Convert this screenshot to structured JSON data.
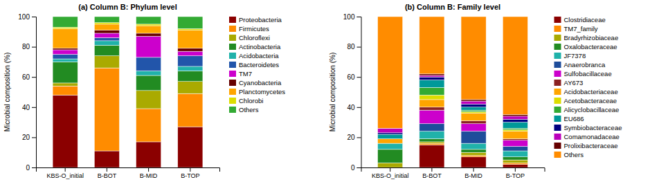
{
  "chart_data": [
    {
      "type": "bar",
      "stacked": true,
      "grid": false,
      "legend": "right",
      "title": "(a) Column B: Phylum level",
      "y_label": "Microbial composition (%)",
      "categories": [
        "KBS-O_initial",
        "B-BOT",
        "B-MID",
        "B-TOP"
      ],
      "ylim": [
        0,
        100
      ],
      "yticks": [
        0,
        20,
        40,
        60,
        80,
        100
      ],
      "series": [
        {
          "name": "Proteobacteria",
          "color": "#8B0000",
          "values": [
            48,
            11,
            17,
            27
          ]
        },
        {
          "name": "Firmicutes",
          "color": "#FF8C00",
          "values": [
            6,
            55,
            22,
            22
          ]
        },
        {
          "name": "Chloroflexi",
          "color": "#AAAA00",
          "values": [
            2,
            8,
            12,
            8
          ]
        },
        {
          "name": "Actinobacteria",
          "color": "#228B22",
          "values": [
            14,
            7,
            10,
            7
          ]
        },
        {
          "name": "Acidobacteria",
          "color": "#20B2AA",
          "values": [
            2,
            3,
            3,
            3
          ]
        },
        {
          "name": "Bacteroidetes",
          "color": "#2255AA",
          "values": [
            3,
            2,
            9,
            7
          ]
        },
        {
          "name": "TM7",
          "color": "#CC00CC",
          "values": [
            3,
            3,
            14,
            3
          ]
        },
        {
          "name": "Cyanobacteria",
          "color": "#660000",
          "values": [
            1,
            2,
            2,
            2
          ]
        },
        {
          "name": "Planctomycetes",
          "color": "#FFA500",
          "values": [
            13,
            4,
            5,
            12
          ]
        },
        {
          "name": "Chlorobi",
          "color": "#DDDD00",
          "values": [
            1,
            1,
            1,
            1
          ]
        },
        {
          "name": "Others",
          "color": "#33AA33",
          "values": [
            7,
            4,
            5,
            8
          ]
        }
      ]
    },
    {
      "type": "bar",
      "stacked": true,
      "grid": false,
      "legend": "right",
      "title": "(b) Column B: Family level",
      "y_label": "Microbial composition (%)",
      "categories": [
        "KBS-O_initial",
        "B-BOT",
        "B-MID",
        "B-TOP"
      ],
      "ylim": [
        0,
        100
      ],
      "yticks": [
        0,
        20,
        40,
        60,
        80,
        100
      ],
      "series": [
        {
          "name": "Clostridiaceae",
          "color": "#8B0000",
          "values": [
            0,
            15,
            7,
            2
          ]
        },
        {
          "name": "TM7_family",
          "color": "#FF8C00",
          "values": [
            0,
            1,
            1,
            1
          ]
        },
        {
          "name": "Bradyrhizobiaceae",
          "color": "#AAAA00",
          "values": [
            3,
            1,
            2,
            2
          ]
        },
        {
          "name": "Oxalobacteraceae",
          "color": "#228B22",
          "values": [
            9,
            2,
            2,
            2
          ]
        },
        {
          "name": "JF7378",
          "color": "#20B2AA",
          "values": [
            4,
            5,
            4,
            4
          ]
        },
        {
          "name": "Anaerobranca",
          "color": "#1E4D9B",
          "values": [
            0,
            5,
            8,
            3
          ]
        },
        {
          "name": "Sulfobacillaceae",
          "color": "#CC00CC",
          "values": [
            0,
            9,
            5,
            4
          ]
        },
        {
          "name": "AY673",
          "color": "#8B2222",
          "values": [
            0,
            2,
            2,
            1
          ]
        },
        {
          "name": "Acidobacteriaceae",
          "color": "#FFA500",
          "values": [
            3,
            5,
            5,
            5
          ]
        },
        {
          "name": "Acetobacteraceae",
          "color": "#DDDD00",
          "values": [
            0,
            3,
            1,
            1
          ]
        },
        {
          "name": "Alicyclobacillaceae",
          "color": "#33AA33",
          "values": [
            0,
            5,
            1,
            1
          ]
        },
        {
          "name": "EU686",
          "color": "#009999",
          "values": [
            3,
            5,
            2,
            4
          ]
        },
        {
          "name": "Symbiobacteraceae",
          "color": "#000080",
          "values": [
            1,
            2,
            2,
            2
          ]
        },
        {
          "name": "Comamonadaceae",
          "color": "#BB00BB",
          "values": [
            3,
            1,
            2,
            2
          ]
        },
        {
          "name": "Prolixibacteraceae",
          "color": "#660000",
          "values": [
            0,
            1,
            1,
            1
          ]
        },
        {
          "name": "Others",
          "color": "#FF8C00",
          "values": [
            74,
            38,
            55,
            65
          ]
        }
      ]
    }
  ]
}
